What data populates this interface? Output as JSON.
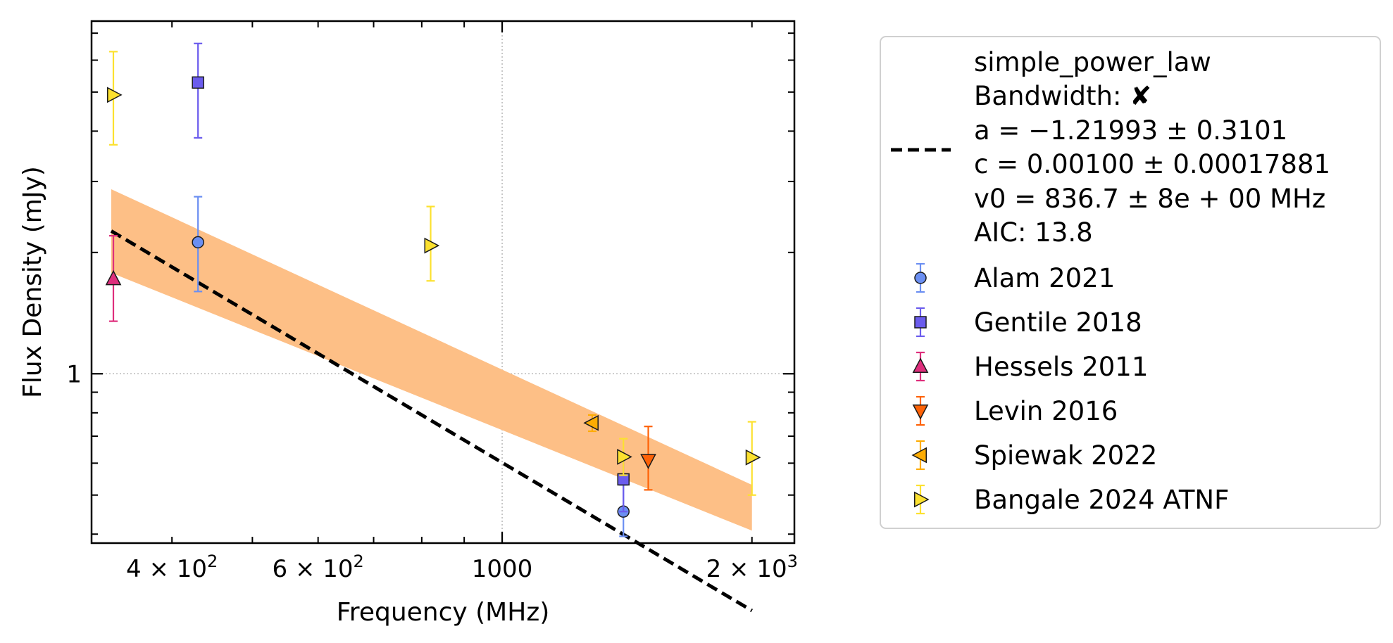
{
  "chart_data": {
    "type": "scatter",
    "title": "",
    "xlabel": "Frequency (MHz)",
    "ylabel": "Flux Density (mJy)",
    "xscale": "log",
    "yscale": "log",
    "xlim": [
      320,
      2250
    ],
    "ylim": [
      0.38,
      7.5
    ],
    "grid": "dotted at major ticks",
    "legend_position": "outside-right",
    "x_ticks": [
      {
        "value": 400,
        "label_base": "4 × 10",
        "label_exp": "2"
      },
      {
        "value": 600,
        "label_base": "6 × 10",
        "label_exp": "2"
      },
      {
        "value": 1000,
        "label_base": "1000",
        "label_exp": ""
      },
      {
        "value": 2000,
        "label_base": "2 × 10",
        "label_exp": "3"
      }
    ],
    "y_ticks": [
      {
        "value": 1,
        "label": "1"
      }
    ],
    "fit": {
      "model_label": "simple_power_law",
      "bandwidth_text": "Bandwidth: ✘",
      "a_text": "a = −1.21993 ± 0.3101",
      "c_text": "c = 0.00100 ± 0.00017881",
      "v0_text": "v0 = 836.7 ± 8e + 00 MHz",
      "aic_text": "AIC: 13.8",
      "a": -1.21993,
      "v0": 836.7,
      "x_range": [
        338,
        2000
      ],
      "color": "#000000",
      "band_color": "#fdbf86",
      "band_upper": [
        [
          338,
          2.87
        ],
        [
          2000,
          0.53
        ]
      ],
      "band_lower": [
        [
          338,
          1.78
        ],
        [
          2000,
          0.408
        ]
      ]
    },
    "series": [
      {
        "name": "Alam 2021",
        "marker": "circle",
        "color": "#6b8ff2",
        "edge": "#5a7de0",
        "points": [
          {
            "x": 430,
            "y": 2.12,
            "lo": 1.6,
            "hi": 2.75
          },
          {
            "x": 1400,
            "y": 0.455,
            "lo": 0.395,
            "hi": 0.53
          }
        ]
      },
      {
        "name": "Gentile 2018",
        "marker": "square",
        "color": "#6b5ced",
        "edge": "#6b5ced",
        "points": [
          {
            "x": 430,
            "y": 5.28,
            "lo": 3.85,
            "hi": 6.6
          },
          {
            "x": 1400,
            "y": 0.547,
            "lo": 0.455,
            "hi": 0.62
          }
        ]
      },
      {
        "name": "Hessels 2011",
        "marker": "triangle-up",
        "color": "#de2e7c",
        "edge": "#de2e7c",
        "points": [
          {
            "x": 340,
            "y": 1.72,
            "lo": 1.35,
            "hi": 2.2
          }
        ]
      },
      {
        "name": "Levin 2016",
        "marker": "triangle-down",
        "color": "#fe6207",
        "edge": "#fe6207",
        "points": [
          {
            "x": 1500,
            "y": 0.61,
            "lo": 0.515,
            "hi": 0.74
          }
        ]
      },
      {
        "name": "Spiewak 2022",
        "marker": "triangle-left",
        "color": "#fdac03",
        "edge": "#fdac03",
        "points": [
          {
            "x": 1284,
            "y": 0.755,
            "lo": 0.72,
            "hi": 0.79
          }
        ]
      },
      {
        "name": "Bangale 2024 ATNF",
        "marker": "triangle-right",
        "color": "#fce12f",
        "edge": "#fce12f",
        "points": [
          {
            "x": 340,
            "y": 4.92,
            "lo": 3.7,
            "hi": 6.3
          },
          {
            "x": 820,
            "y": 2.08,
            "lo": 1.7,
            "hi": 2.6
          },
          {
            "x": 1400,
            "y": 0.622,
            "lo": 0.56,
            "hi": 0.69
          },
          {
            "x": 2000,
            "y": 0.62,
            "lo": 0.5,
            "hi": 0.76
          }
        ]
      }
    ]
  }
}
